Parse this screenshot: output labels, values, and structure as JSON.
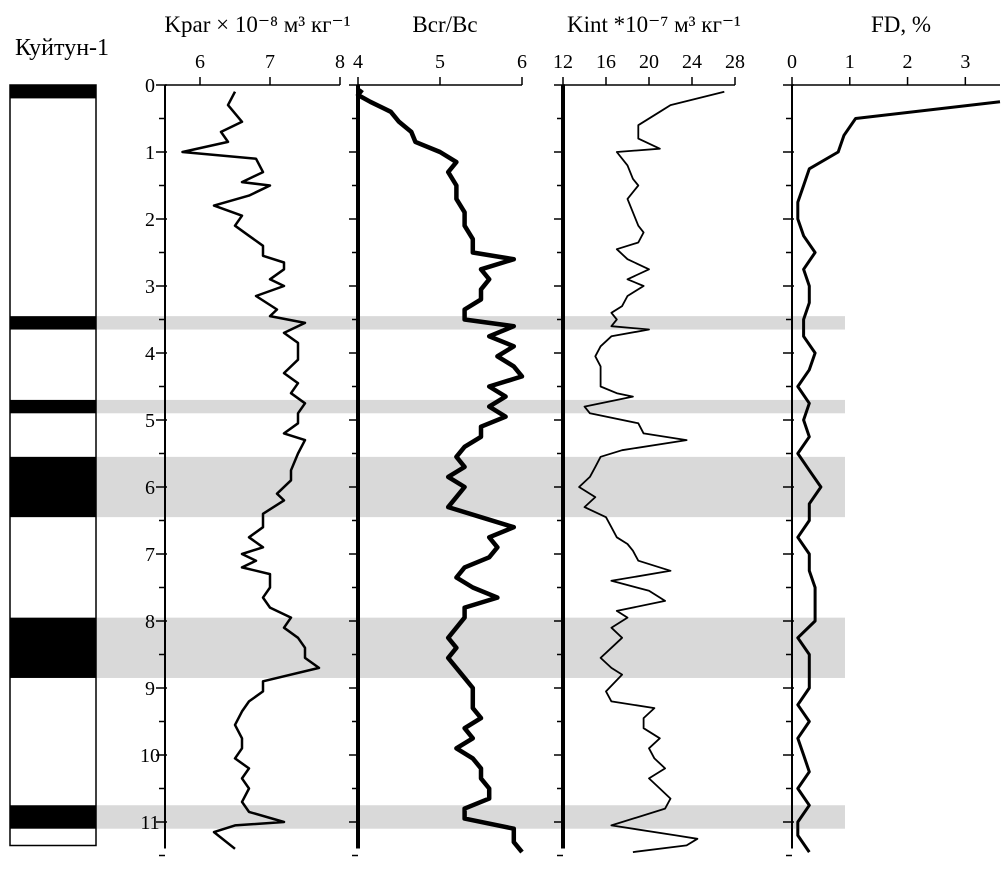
{
  "section_label": "Куйтун-1",
  "depth_axis": {
    "min": 0,
    "max": 11.5,
    "ticks": [
      "0",
      "1",
      "2",
      "3",
      "4",
      "5",
      "6",
      "7",
      "8",
      "9",
      "10",
      "11"
    ]
  },
  "colors": {
    "band": "#d9d9d9",
    "line": "#000000",
    "background": "#ffffff"
  },
  "panels": [
    {
      "id": "kpar",
      "title": "Kpar × 10⁻⁸ м³ кг⁻¹",
      "xmin": 5.5,
      "xmax": 8,
      "tick_values": [
        6,
        7,
        8
      ],
      "tick_labels": [
        "6",
        "7",
        "8"
      ]
    },
    {
      "id": "bcr",
      "title": "Bcr/Bc",
      "xmin": 4,
      "xmax": 6,
      "tick_values": [
        4,
        5,
        6
      ],
      "tick_labels": [
        "4",
        "5",
        "6"
      ]
    },
    {
      "id": "kint",
      "title": "Kint *10⁻⁷ м³ кг⁻¹",
      "xmin": 12,
      "xmax": 28,
      "tick_values": [
        12,
        16,
        20,
        24,
        28
      ],
      "tick_labels": [
        "12",
        "16",
        "20",
        "24",
        "28"
      ]
    },
    {
      "id": "fd",
      "title": "FD, %",
      "xmin": 0,
      "xmax": 3.6,
      "tick_values": [
        0,
        1,
        2,
        3
      ],
      "tick_labels": [
        "0",
        "1",
        "2",
        "3"
      ]
    }
  ],
  "chart_data": {
    "type": "line",
    "y_axis": "depth",
    "y_ticks": [
      0,
      1,
      2,
      3,
      4,
      5,
      6,
      7,
      8,
      9,
      10,
      11
    ],
    "ylim": [
      0,
      11.5
    ],
    "grid": false,
    "highlight_bands": [
      [
        3.45,
        3.65
      ],
      [
        4.7,
        4.9
      ],
      [
        5.55,
        6.45
      ],
      [
        7.95,
        8.85
      ],
      [
        10.75,
        11.1
      ]
    ],
    "lithology_column": {
      "dark_intervals": [
        [
          0,
          0.2
        ],
        [
          3.45,
          3.65
        ],
        [
          4.7,
          4.9
        ],
        [
          5.55,
          6.45
        ],
        [
          7.95,
          8.85
        ],
        [
          10.75,
          11.1
        ]
      ]
    },
    "series": [
      {
        "panel": "kpar",
        "points": [
          [
            6.5,
            0.1
          ],
          [
            6.4,
            0.3
          ],
          [
            6.6,
            0.55
          ],
          [
            6.3,
            0.7
          ],
          [
            6.4,
            0.85
          ],
          [
            5.75,
            1.0
          ],
          [
            6.8,
            1.1
          ],
          [
            6.9,
            1.3
          ],
          [
            6.6,
            1.45
          ],
          [
            7.0,
            1.5
          ],
          [
            6.7,
            1.65
          ],
          [
            6.2,
            1.8
          ],
          [
            6.6,
            1.95
          ],
          [
            6.5,
            2.1
          ],
          [
            6.7,
            2.25
          ],
          [
            6.9,
            2.4
          ],
          [
            6.9,
            2.55
          ],
          [
            7.2,
            2.65
          ],
          [
            7.2,
            2.75
          ],
          [
            7.0,
            2.9
          ],
          [
            7.2,
            3.0
          ],
          [
            6.8,
            3.15
          ],
          [
            7.1,
            3.35
          ],
          [
            7.0,
            3.45
          ],
          [
            7.5,
            3.55
          ],
          [
            7.2,
            3.7
          ],
          [
            7.4,
            3.85
          ],
          [
            7.4,
            4.1
          ],
          [
            7.2,
            4.3
          ],
          [
            7.4,
            4.45
          ],
          [
            7.3,
            4.6
          ],
          [
            7.5,
            4.75
          ],
          [
            7.4,
            4.9
          ],
          [
            7.4,
            5.05
          ],
          [
            7.2,
            5.2
          ],
          [
            7.5,
            5.3
          ],
          [
            7.4,
            5.5
          ],
          [
            7.3,
            5.75
          ],
          [
            7.3,
            5.9
          ],
          [
            7.1,
            6.1
          ],
          [
            7.2,
            6.2
          ],
          [
            6.9,
            6.4
          ],
          [
            6.9,
            6.6
          ],
          [
            6.7,
            6.75
          ],
          [
            6.9,
            6.9
          ],
          [
            6.6,
            7.0
          ],
          [
            6.8,
            7.1
          ],
          [
            6.6,
            7.2
          ],
          [
            7.0,
            7.3
          ],
          [
            7.0,
            7.5
          ],
          [
            6.9,
            7.65
          ],
          [
            7.0,
            7.8
          ],
          [
            7.3,
            7.95
          ],
          [
            7.2,
            8.1
          ],
          [
            7.4,
            8.25
          ],
          [
            7.5,
            8.4
          ],
          [
            7.5,
            8.55
          ],
          [
            7.7,
            8.7
          ],
          [
            6.9,
            8.9
          ],
          [
            6.9,
            9.05
          ],
          [
            6.7,
            9.2
          ],
          [
            6.6,
            9.35
          ],
          [
            6.5,
            9.55
          ],
          [
            6.6,
            9.75
          ],
          [
            6.6,
            9.9
          ],
          [
            6.5,
            10.05
          ],
          [
            6.7,
            10.2
          ],
          [
            6.6,
            10.35
          ],
          [
            6.7,
            10.5
          ],
          [
            6.6,
            10.7
          ],
          [
            6.7,
            10.85
          ],
          [
            7.2,
            11.0
          ],
          [
            6.5,
            11.05
          ],
          [
            6.2,
            11.15
          ],
          [
            6.5,
            11.4
          ]
        ]
      },
      {
        "panel": "bcr",
        "points": [
          [
            4.05,
            0.07
          ],
          [
            4.0,
            0.15
          ],
          [
            4.15,
            0.25
          ],
          [
            4.4,
            0.4
          ],
          [
            4.5,
            0.55
          ],
          [
            4.65,
            0.7
          ],
          [
            4.7,
            0.85
          ],
          [
            5.0,
            1.0
          ],
          [
            5.2,
            1.15
          ],
          [
            5.1,
            1.3
          ],
          [
            5.2,
            1.5
          ],
          [
            5.2,
            1.7
          ],
          [
            5.3,
            1.9
          ],
          [
            5.3,
            2.1
          ],
          [
            5.4,
            2.3
          ],
          [
            5.4,
            2.5
          ],
          [
            5.9,
            2.6
          ],
          [
            5.5,
            2.75
          ],
          [
            5.6,
            2.9
          ],
          [
            5.5,
            3.05
          ],
          [
            5.5,
            3.2
          ],
          [
            5.3,
            3.35
          ],
          [
            5.3,
            3.5
          ],
          [
            5.9,
            3.6
          ],
          [
            5.6,
            3.75
          ],
          [
            5.9,
            3.9
          ],
          [
            5.7,
            4.05
          ],
          [
            5.9,
            4.2
          ],
          [
            6.0,
            4.35
          ],
          [
            5.6,
            4.5
          ],
          [
            5.8,
            4.65
          ],
          [
            5.6,
            4.8
          ],
          [
            5.8,
            4.95
          ],
          [
            5.5,
            5.1
          ],
          [
            5.5,
            5.25
          ],
          [
            5.3,
            5.4
          ],
          [
            5.2,
            5.55
          ],
          [
            5.3,
            5.7
          ],
          [
            5.1,
            5.85
          ],
          [
            5.3,
            6.0
          ],
          [
            5.2,
            6.15
          ],
          [
            5.1,
            6.3
          ],
          [
            5.5,
            6.45
          ],
          [
            5.9,
            6.6
          ],
          [
            5.6,
            6.75
          ],
          [
            5.7,
            6.9
          ],
          [
            5.6,
            7.05
          ],
          [
            5.3,
            7.2
          ],
          [
            5.2,
            7.35
          ],
          [
            5.4,
            7.5
          ],
          [
            5.7,
            7.65
          ],
          [
            5.3,
            7.8
          ],
          [
            5.3,
            7.95
          ],
          [
            5.2,
            8.1
          ],
          [
            5.1,
            8.25
          ],
          [
            5.2,
            8.4
          ],
          [
            5.1,
            8.55
          ],
          [
            5.2,
            8.7
          ],
          [
            5.3,
            8.85
          ],
          [
            5.4,
            9.0
          ],
          [
            5.4,
            9.15
          ],
          [
            5.4,
            9.3
          ],
          [
            5.5,
            9.45
          ],
          [
            5.3,
            9.6
          ],
          [
            5.4,
            9.75
          ],
          [
            5.2,
            9.9
          ],
          [
            5.4,
            10.05
          ],
          [
            5.5,
            10.2
          ],
          [
            5.5,
            10.35
          ],
          [
            5.6,
            10.5
          ],
          [
            5.6,
            10.65
          ],
          [
            5.3,
            10.8
          ],
          [
            5.3,
            10.95
          ],
          [
            5.9,
            11.1
          ],
          [
            5.9,
            11.3
          ],
          [
            6.0,
            11.45
          ]
        ]
      },
      {
        "panel": "kint",
        "points": [
          [
            27.0,
            0.1
          ],
          [
            22.0,
            0.3
          ],
          [
            21.0,
            0.4
          ],
          [
            19.0,
            0.6
          ],
          [
            19.0,
            0.8
          ],
          [
            21.0,
            0.95
          ],
          [
            17.0,
            1.0
          ],
          [
            18.0,
            1.2
          ],
          [
            18.5,
            1.4
          ],
          [
            19.0,
            1.5
          ],
          [
            18.0,
            1.7
          ],
          [
            18.5,
            1.9
          ],
          [
            19.0,
            2.1
          ],
          [
            19.5,
            2.2
          ],
          [
            19.0,
            2.35
          ],
          [
            17.0,
            2.45
          ],
          [
            18.0,
            2.6
          ],
          [
            20.0,
            2.75
          ],
          [
            18.0,
            2.9
          ],
          [
            19.5,
            3.0
          ],
          [
            18.0,
            3.15
          ],
          [
            17.5,
            3.3
          ],
          [
            16.5,
            3.4
          ],
          [
            17.0,
            3.5
          ],
          [
            16.5,
            3.6
          ],
          [
            20.0,
            3.65
          ],
          [
            16.5,
            3.75
          ],
          [
            15.5,
            3.9
          ],
          [
            15.0,
            4.05
          ],
          [
            15.5,
            4.2
          ],
          [
            15.5,
            4.35
          ],
          [
            15.5,
            4.5
          ],
          [
            17.0,
            4.6
          ],
          [
            18.5,
            4.65
          ],
          [
            14.0,
            4.8
          ],
          [
            14.5,
            4.9
          ],
          [
            19.0,
            5.05
          ],
          [
            19.5,
            5.2
          ],
          [
            23.5,
            5.3
          ],
          [
            17.5,
            5.45
          ],
          [
            15.5,
            5.55
          ],
          [
            15.0,
            5.7
          ],
          [
            14.5,
            5.85
          ],
          [
            13.5,
            6.0
          ],
          [
            15.0,
            6.15
          ],
          [
            14.0,
            6.3
          ],
          [
            16.0,
            6.45
          ],
          [
            16.5,
            6.6
          ],
          [
            17.0,
            6.75
          ],
          [
            18.0,
            6.85
          ],
          [
            18.5,
            6.95
          ],
          [
            19.0,
            7.1
          ],
          [
            22.0,
            7.25
          ],
          [
            16.5,
            7.4
          ],
          [
            20.0,
            7.55
          ],
          [
            21.5,
            7.7
          ],
          [
            17.0,
            7.85
          ],
          [
            18.0,
            7.95
          ],
          [
            16.5,
            8.1
          ],
          [
            17.5,
            8.25
          ],
          [
            16.5,
            8.4
          ],
          [
            15.5,
            8.55
          ],
          [
            16.5,
            8.7
          ],
          [
            17.5,
            8.8
          ],
          [
            16.0,
            9.05
          ],
          [
            16.5,
            9.2
          ],
          [
            20.5,
            9.3
          ],
          [
            19.5,
            9.45
          ],
          [
            19.5,
            9.6
          ],
          [
            21.0,
            9.75
          ],
          [
            20.0,
            9.9
          ],
          [
            20.5,
            10.05
          ],
          [
            21.5,
            10.2
          ],
          [
            20.0,
            10.35
          ],
          [
            21.0,
            10.5
          ],
          [
            22.0,
            10.65
          ],
          [
            21.5,
            10.8
          ],
          [
            16.5,
            11.05
          ],
          [
            22.5,
            11.2
          ],
          [
            24.5,
            11.25
          ],
          [
            23.5,
            11.35
          ],
          [
            18.5,
            11.45
          ]
        ]
      },
      {
        "panel": "fd",
        "points": [
          [
            3.6,
            0.25
          ],
          [
            1.1,
            0.5
          ],
          [
            0.9,
            0.75
          ],
          [
            0.8,
            1.0
          ],
          [
            0.3,
            1.25
          ],
          [
            0.2,
            1.5
          ],
          [
            0.1,
            1.75
          ],
          [
            0.1,
            2.0
          ],
          [
            0.2,
            2.25
          ],
          [
            0.4,
            2.5
          ],
          [
            0.2,
            2.75
          ],
          [
            0.3,
            3.0
          ],
          [
            0.3,
            3.25
          ],
          [
            0.2,
            3.5
          ],
          [
            0.2,
            3.75
          ],
          [
            0.4,
            4.0
          ],
          [
            0.3,
            4.25
          ],
          [
            0.1,
            4.5
          ],
          [
            0.3,
            4.75
          ],
          [
            0.2,
            5.0
          ],
          [
            0.3,
            5.25
          ],
          [
            0.1,
            5.5
          ],
          [
            0.3,
            5.75
          ],
          [
            0.5,
            6.0
          ],
          [
            0.3,
            6.25
          ],
          [
            0.3,
            6.5
          ],
          [
            0.1,
            6.75
          ],
          [
            0.3,
            7.0
          ],
          [
            0.3,
            7.25
          ],
          [
            0.4,
            7.5
          ],
          [
            0.4,
            7.75
          ],
          [
            0.4,
            8.0
          ],
          [
            0.1,
            8.25
          ],
          [
            0.3,
            8.5
          ],
          [
            0.3,
            8.75
          ],
          [
            0.3,
            9.0
          ],
          [
            0.1,
            9.25
          ],
          [
            0.3,
            9.5
          ],
          [
            0.1,
            9.75
          ],
          [
            0.2,
            10.0
          ],
          [
            0.3,
            10.25
          ],
          [
            0.1,
            10.5
          ],
          [
            0.3,
            10.75
          ],
          [
            0.1,
            11.0
          ],
          [
            0.1,
            11.2
          ],
          [
            0.3,
            11.45
          ]
        ]
      }
    ]
  }
}
